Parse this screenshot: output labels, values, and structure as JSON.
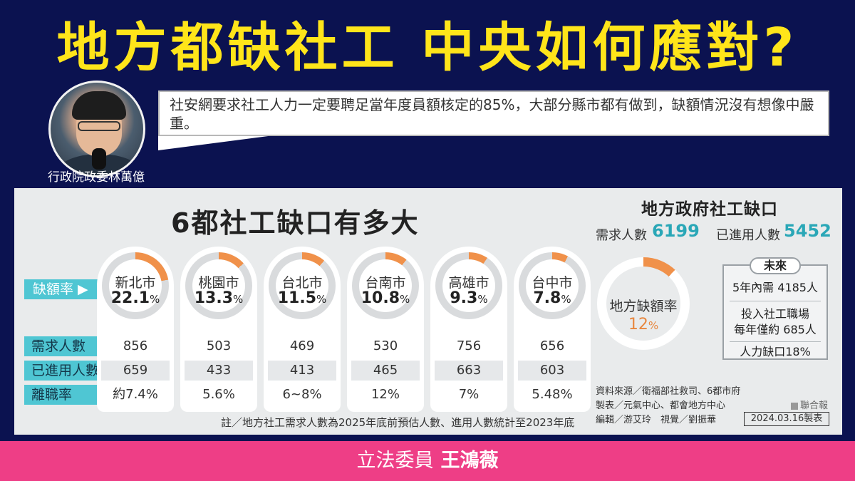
{
  "headline": "地方都缺社工 中央如何應對?",
  "speaker": {
    "caption": "行政院政委林萬億"
  },
  "quote": "社安網要求社工人力一定要聘足當年度員額核定的85%，大部分縣市都有做到，缺額情況沒有想像中嚴重。",
  "infographic": {
    "title": "6都社工缺口有多大",
    "labels": {
      "shortage_rate": "缺額率 ▶",
      "demand": "需求人數",
      "hired": "已進用人數",
      "turnover": "離職率"
    },
    "cities": [
      {
        "name": "新北市",
        "rate": "22.1",
        "rate_value": 22.1,
        "demand": "856",
        "hired": "659",
        "turnover": "約7.4%"
      },
      {
        "name": "桃園市",
        "rate": "13.3",
        "rate_value": 13.3,
        "demand": "503",
        "hired": "433",
        "turnover": "5.6%"
      },
      {
        "name": "台北市",
        "rate": "11.5",
        "rate_value": 11.5,
        "demand": "469",
        "hired": "413",
        "turnover": "6~8%"
      },
      {
        "name": "台南市",
        "rate": "10.8",
        "rate_value": 10.8,
        "demand": "530",
        "hired": "465",
        "turnover": "12%"
      },
      {
        "name": "高雄市",
        "rate": "9.3",
        "rate_value": 9.3,
        "demand": "756",
        "hired": "663",
        "turnover": "7%"
      },
      {
        "name": "台中市",
        "rate": "7.8",
        "rate_value": 7.8,
        "demand": "656",
        "hired": "603",
        "turnover": "5.48%"
      }
    ],
    "percent_unit": "%",
    "note": "註／地方社工需求人數為2025年底前預估人數、進用人數統計至2023年底",
    "local": {
      "title": "地方政府社工缺口",
      "demand_label": "需求人數",
      "demand_value": "6199",
      "hired_label": "已進用人數",
      "hired_value": "5452",
      "ring_label": "地方缺額率",
      "ring_value": "12",
      "ring_rate": 12
    },
    "future": {
      "tag": "未來",
      "items": [
        "5年內需 4185人",
        "投入社工職場",
        "每年僅約 685人",
        "人力缺口18%"
      ]
    },
    "source_lines": [
      "資料來源／衛福部社救司、6都市府",
      "製表／元氣中心、都會地方中心",
      "編輯／游艾玲　視覺／劉振華"
    ],
    "publisher": "聯合報",
    "date": "2024.03.16製表"
  },
  "footer": {
    "role": "立法委員",
    "name": "王鴻薇"
  },
  "colors": {
    "accent_orange": "#f0914a",
    "ring_grey": "#d9dbdd",
    "teal": "#4fc6d3",
    "headline_yellow": "#ffe51a",
    "footer_pink": "#ee3e86"
  }
}
